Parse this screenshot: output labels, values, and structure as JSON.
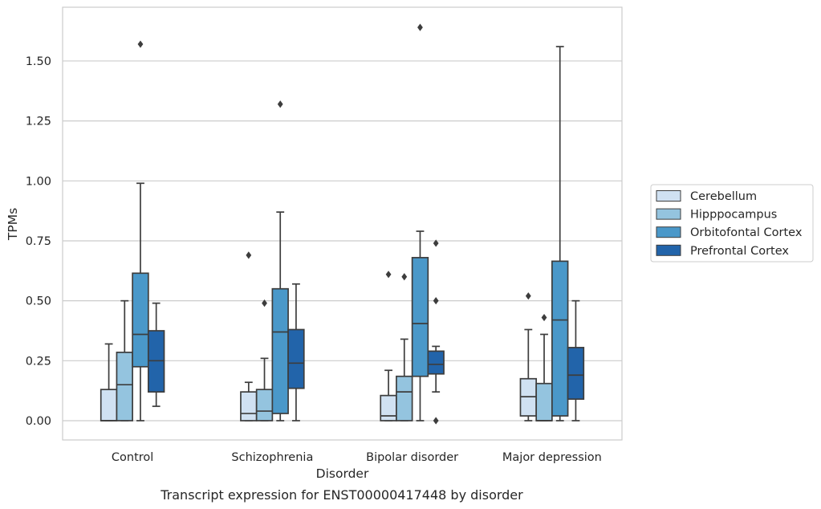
{
  "chart_data": {
    "type": "box",
    "title": "",
    "caption": "Transcript expression for ENST00000417448 by disorder",
    "xlabel": "Disorder",
    "ylabel": "TPMs",
    "ylim": [
      -0.08,
      1.72
    ],
    "yticks": [
      "0.00",
      "0.25",
      "0.50",
      "0.75",
      "1.00",
      "1.25",
      "1.50"
    ],
    "grid": "horizontal",
    "legend_position": "right",
    "categories": [
      "Control",
      "Schizophrenia",
      "Bipolar disorder",
      "Major depression"
    ],
    "series": [
      {
        "name": "Cerebellum",
        "color": "#d0e1f2",
        "boxes": [
          {
            "whislo": 0.0,
            "q1": 0.0,
            "med": 0.0,
            "q3": 0.13,
            "whishi": 0.32,
            "fliers": []
          },
          {
            "whislo": 0.0,
            "q1": 0.0,
            "med": 0.03,
            "q3": 0.12,
            "whishi": 0.16,
            "fliers": [
              0.69
            ]
          },
          {
            "whislo": 0.0,
            "q1": 0.0,
            "med": 0.02,
            "q3": 0.105,
            "whishi": 0.21,
            "fliers": [
              0.61
            ]
          },
          {
            "whislo": 0.0,
            "q1": 0.02,
            "med": 0.1,
            "q3": 0.175,
            "whishi": 0.38,
            "fliers": [
              0.52
            ]
          }
        ]
      },
      {
        "name": "Hipppocampus",
        "color": "#94c4df",
        "boxes": [
          {
            "whislo": 0.0,
            "q1": 0.0,
            "med": 0.15,
            "q3": 0.285,
            "whishi": 0.5,
            "fliers": []
          },
          {
            "whislo": 0.0,
            "q1": 0.0,
            "med": 0.04,
            "q3": 0.13,
            "whishi": 0.26,
            "fliers": [
              0.49
            ]
          },
          {
            "whislo": 0.0,
            "q1": 0.0,
            "med": 0.12,
            "q3": 0.185,
            "whishi": 0.34,
            "fliers": [
              0.6
            ]
          },
          {
            "whislo": 0.0,
            "q1": 0.0,
            "med": 0.0,
            "q3": 0.155,
            "whishi": 0.36,
            "fliers": [
              0.43
            ]
          }
        ]
      },
      {
        "name": "Orbitofontal Cortex",
        "color": "#4a98c9",
        "boxes": [
          {
            "whislo": 0.0,
            "q1": 0.225,
            "med": 0.36,
            "q3": 0.615,
            "whishi": 0.99,
            "fliers": [
              1.57
            ]
          },
          {
            "whislo": 0.0,
            "q1": 0.03,
            "med": 0.37,
            "q3": 0.55,
            "whishi": 0.87,
            "fliers": [
              1.32
            ]
          },
          {
            "whislo": 0.0,
            "q1": 0.185,
            "med": 0.405,
            "q3": 0.68,
            "whishi": 0.79,
            "fliers": [
              1.64
            ]
          },
          {
            "whislo": 0.0,
            "q1": 0.02,
            "med": 0.42,
            "q3": 0.665,
            "whishi": 1.56,
            "fliers": []
          }
        ]
      },
      {
        "name": "Prefrontal Cortex",
        "color": "#2264aa",
        "boxes": [
          {
            "whislo": 0.06,
            "q1": 0.12,
            "med": 0.25,
            "q3": 0.375,
            "whishi": 0.49,
            "fliers": []
          },
          {
            "whislo": 0.0,
            "q1": 0.135,
            "med": 0.24,
            "q3": 0.38,
            "whishi": 0.57,
            "fliers": []
          },
          {
            "whislo": 0.12,
            "q1": 0.195,
            "med": 0.235,
            "q3": 0.29,
            "whishi": 0.31,
            "fliers": [
              0.0,
              0.74,
              0.5
            ]
          },
          {
            "whislo": 0.0,
            "q1": 0.09,
            "med": 0.19,
            "q3": 0.305,
            "whishi": 0.5,
            "fliers": []
          }
        ]
      }
    ]
  }
}
